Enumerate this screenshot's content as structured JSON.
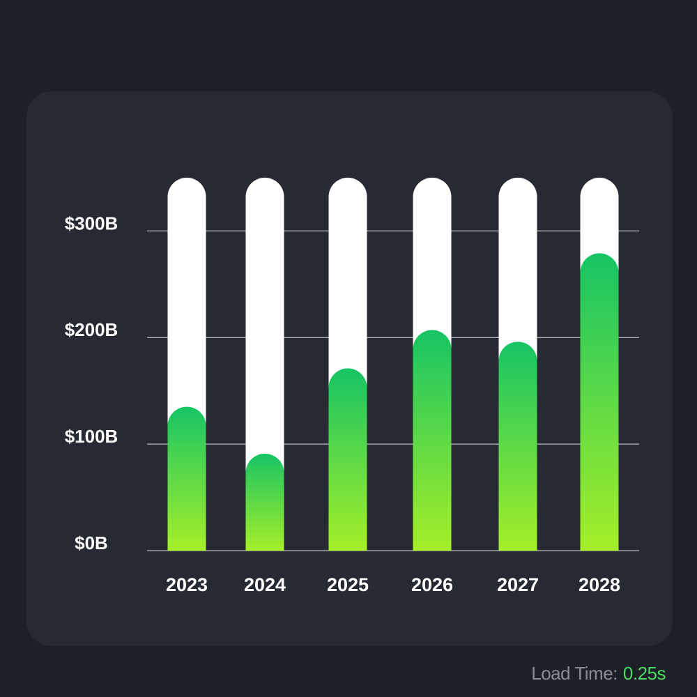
{
  "chart_data": {
    "type": "bar",
    "title": "",
    "xlabel": "",
    "ylabel": "",
    "categories": [
      "2023",
      "2024",
      "2025",
      "2026",
      "2027",
      "2028"
    ],
    "values": [
      135,
      91,
      171,
      207,
      196,
      279
    ],
    "track_max": 350,
    "ylim": [
      0,
      300
    ],
    "y_ticks": [
      0,
      100,
      200,
      300
    ],
    "y_tick_labels": [
      "$0B",
      "$100B",
      "$200B",
      "$300B"
    ],
    "grid": true,
    "colors": {
      "bar_top": "#16c464",
      "bar_bottom": "#a5ef27",
      "track": "#ffffff",
      "gridline": "#ffffff"
    }
  },
  "footer": {
    "label": "Load Time:",
    "value": "0.25s",
    "value_color": "#4cd964"
  }
}
